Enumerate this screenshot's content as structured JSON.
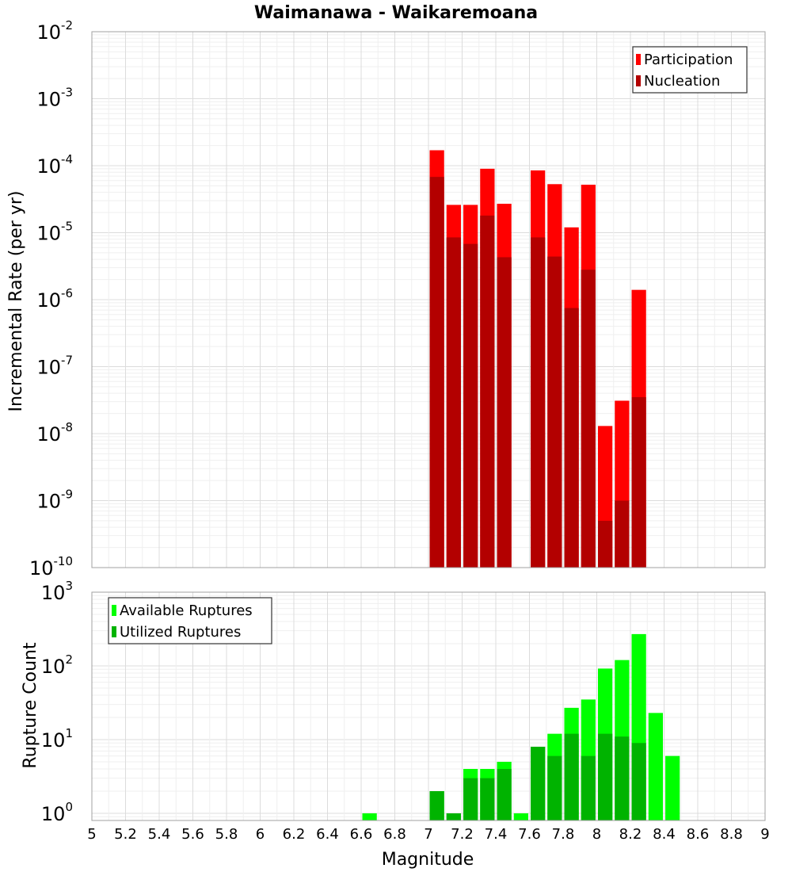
{
  "chart_data": [
    {
      "type": "bar",
      "title": "Waimanawa - Waikaremoana",
      "xlabel": "Magnitude",
      "ylabel": "Incremental Rate (per yr)",
      "yscale": "log",
      "ylim": [
        1e-10,
        0.01
      ],
      "xlim": [
        5,
        9
      ],
      "grid": true,
      "legend_position": "top-right",
      "bin_width": 0.1,
      "x": [
        7.05,
        7.15,
        7.25,
        7.35,
        7.45,
        7.55,
        7.65,
        7.75,
        7.85,
        7.95,
        8.05,
        8.15,
        8.25
      ],
      "series": [
        {
          "name": "Participation",
          "color": "#ff0000",
          "values": [
            0.00017,
            2.6e-05,
            2.6e-05,
            9e-05,
            2.7e-05,
            null,
            8.5e-05,
            5.3e-05,
            1.2e-05,
            5.2e-05,
            1.3e-08,
            3.1e-08,
            1.4e-06
          ]
        },
        {
          "name": "Nucleation",
          "color": "#b30000",
          "values": [
            6.8e-05,
            8.5e-06,
            6.8e-06,
            1.8e-05,
            4.3e-06,
            null,
            8.5e-06,
            4.4e-06,
            7.5e-07,
            2.8e-06,
            5e-10,
            1e-09,
            3.5e-08
          ]
        }
      ],
      "yticks": [
        {
          "base": "10",
          "exp": "-2"
        },
        {
          "base": "10",
          "exp": "-3"
        },
        {
          "base": "10",
          "exp": "-4"
        },
        {
          "base": "10",
          "exp": "-5"
        },
        {
          "base": "10",
          "exp": "-6"
        },
        {
          "base": "10",
          "exp": "-7"
        },
        {
          "base": "10",
          "exp": "-8"
        },
        {
          "base": "10",
          "exp": "-9"
        },
        {
          "base": "10",
          "exp": "-10"
        }
      ]
    },
    {
      "type": "bar",
      "xlabel": "Magnitude",
      "ylabel": "Rupture Count",
      "yscale": "log",
      "ylim": [
        0.8,
        1000
      ],
      "xlim": [
        5,
        9
      ],
      "grid": true,
      "legend_position": "top-left",
      "bin_width": 0.1,
      "x": [
        6.65,
        7.05,
        7.15,
        7.25,
        7.35,
        7.45,
        7.55,
        7.65,
        7.75,
        7.85,
        7.95,
        8.05,
        8.15,
        8.25,
        8.35,
        8.45
      ],
      "series": [
        {
          "name": "Available Ruptures",
          "color": "#00ff00",
          "values": [
            1,
            2,
            1,
            4,
            4,
            5,
            1,
            8,
            12,
            27,
            35,
            92,
            120,
            270,
            23,
            6
          ]
        },
        {
          "name": "Utilized Ruptures",
          "color": "#00b300",
          "values": [
            null,
            2,
            1,
            3,
            3,
            4,
            null,
            8,
            6,
            12,
            6,
            12,
            11,
            9,
            null,
            null
          ]
        }
      ],
      "xticks": [
        "5",
        "5.2",
        "5.4",
        "5.6",
        "5.8",
        "6",
        "6.2",
        "6.4",
        "6.6",
        "6.8",
        "7",
        "7.2",
        "7.4",
        "7.6",
        "7.8",
        "8",
        "8.2",
        "8.4",
        "8.6",
        "8.8",
        "9"
      ],
      "yticks": [
        {
          "base": "10",
          "exp": "3"
        },
        {
          "base": "10",
          "exp": "2"
        },
        {
          "base": "10",
          "exp": "1"
        },
        {
          "base": "10",
          "exp": "0"
        }
      ]
    }
  ]
}
